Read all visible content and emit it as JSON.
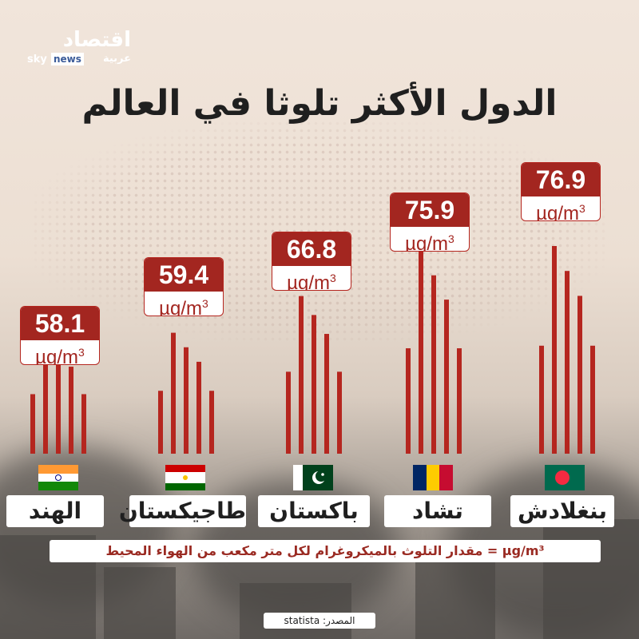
{
  "brand": {
    "name_ar": "اقتصاد",
    "sub_ar": "عربية",
    "sky": "sky",
    "news": "news"
  },
  "title": "الدول الأكثر تلوثا في العالم",
  "unit_label": "µg/m",
  "unit_sup": "3",
  "legend": "µg/m³ = مقدار التلوث بالميكروغرام لكل متر مكعب من الهواء المحيط",
  "source": "المصدر: statista",
  "countries": [
    {
      "name": "الهند",
      "value": "58.1",
      "flag": "india"
    },
    {
      "name": "طاجيكستان",
      "value": "59.4",
      "flag": "tajikistan"
    },
    {
      "name": "باكستان",
      "value": "66.8",
      "flag": "pakistan"
    },
    {
      "name": "تشاد",
      "value": "75.9",
      "flag": "chad"
    },
    {
      "name": "بنغلادش",
      "value": "76.9",
      "flag": "bangladesh"
    }
  ],
  "chart_data": {
    "type": "bar",
    "categories": [
      "الهند",
      "طاجيكستان",
      "باكستان",
      "تشاد",
      "بنغلادش"
    ],
    "values": [
      58.1,
      59.4,
      66.8,
      75.9,
      76.9
    ],
    "title": "الدول الأكثر تلوثا في العالم",
    "ylabel": "µg/m³"
  },
  "colors": {
    "accent": "#a32620",
    "bar": "#b5261f"
  }
}
